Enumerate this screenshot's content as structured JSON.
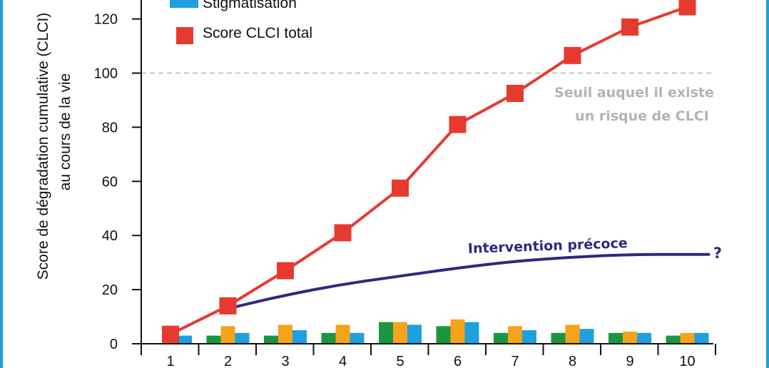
{
  "chart_data": {
    "type": "bar",
    "ylabel": "Score de dégradation cumulative (CLCI)",
    "ylabel2": "au cours de la vie",
    "ylim": [
      0,
      128
    ],
    "yticks": [
      0,
      20,
      40,
      60,
      80,
      100,
      120
    ],
    "categories": [
      "1",
      "2",
      "3",
      "4",
      "5",
      "6",
      "7",
      "8",
      "9",
      "10"
    ],
    "legend": [
      {
        "label": "Stigmatisation",
        "color": "#1ea0e0",
        "marker": "rect"
      },
      {
        "label": "Score CLCI total",
        "color": "#e63a30",
        "marker": "square"
      }
    ],
    "bar_series": [
      {
        "color": "#1a9641",
        "values": [
          0,
          3,
          3,
          4,
          8,
          6.5,
          4,
          4,
          4,
          3
        ]
      },
      {
        "color": "#f5a31a",
        "values": [
          3,
          6.5,
          7,
          7,
          8,
          9,
          6.5,
          7,
          4.5,
          4
        ]
      },
      {
        "color": "#1ea0e0",
        "values": [
          3,
          4,
          5,
          4,
          7,
          8,
          5,
          5.5,
          4,
          4
        ]
      }
    ],
    "line_series": [
      {
        "name": "Score CLCI total",
        "color": "#e63a30",
        "marker": "square",
        "values": [
          3.5,
          14,
          27,
          41,
          57.5,
          81,
          92.5,
          106.5,
          117,
          124.5
        ]
      }
    ],
    "threshold": {
      "value": 100,
      "color": "#b3b3b3",
      "label1": "Seuil auquel il existe",
      "label2": "un risque de CLCI"
    },
    "intervention": {
      "label": "Intervention précoce",
      "end_label": "?",
      "color": "#2b2a7e",
      "x": [
        2,
        3,
        4,
        5,
        6,
        7,
        8,
        9,
        10
      ],
      "values": [
        13,
        18,
        22,
        25,
        28,
        30.5,
        32,
        33,
        33
      ]
    }
  }
}
